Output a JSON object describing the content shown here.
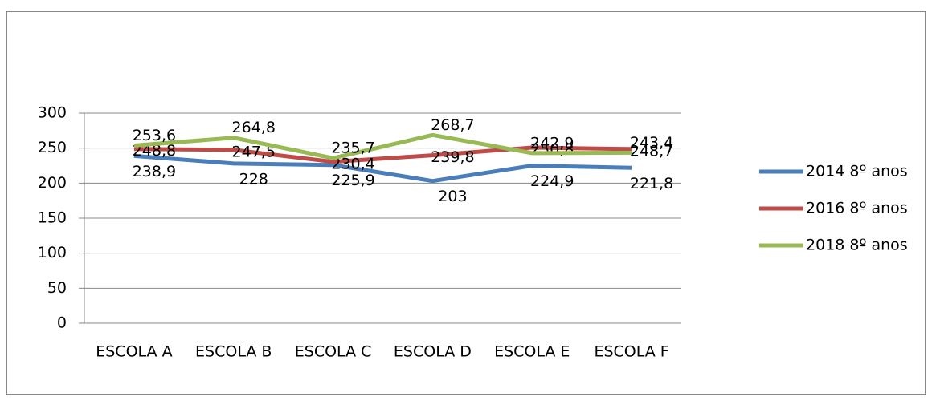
{
  "chart_data": {
    "type": "line",
    "categories": [
      "ESCOLA A",
      "ESCOLA B",
      "ESCOLA C",
      "ESCOLA D",
      "ESCOLA E",
      "ESCOLA F"
    ],
    "series": [
      {
        "name": "2014 8º anos",
        "color": "#4a7ebb",
        "values": [
          238.9,
          228,
          225.9,
          203,
          224.9,
          221.8
        ],
        "value_labels": [
          "238,9",
          "228",
          "225,9",
          "203",
          "224,9",
          "221,8"
        ]
      },
      {
        "name": "2016 8º anos",
        "color": "#be4b48",
        "values": [
          248.8,
          247.5,
          230.4,
          239.8,
          250.8,
          248.7
        ],
        "value_labels": [
          "248,8",
          "247,5",
          "230,4",
          "239,8",
          "250,8",
          "248,7"
        ]
      },
      {
        "name": "2018 8º anos",
        "color": "#98b954",
        "values": [
          253.6,
          264.8,
          235.7,
          268.7,
          242.9,
          243.4
        ],
        "value_labels": [
          "253,6",
          "264,8",
          "235,7",
          "268,7",
          "242,9",
          "243,4"
        ]
      }
    ],
    "ylim": [
      0,
      300
    ],
    "yticks": [
      0,
      50,
      100,
      150,
      200,
      250,
      300
    ],
    "grid": true,
    "legend": "right"
  }
}
